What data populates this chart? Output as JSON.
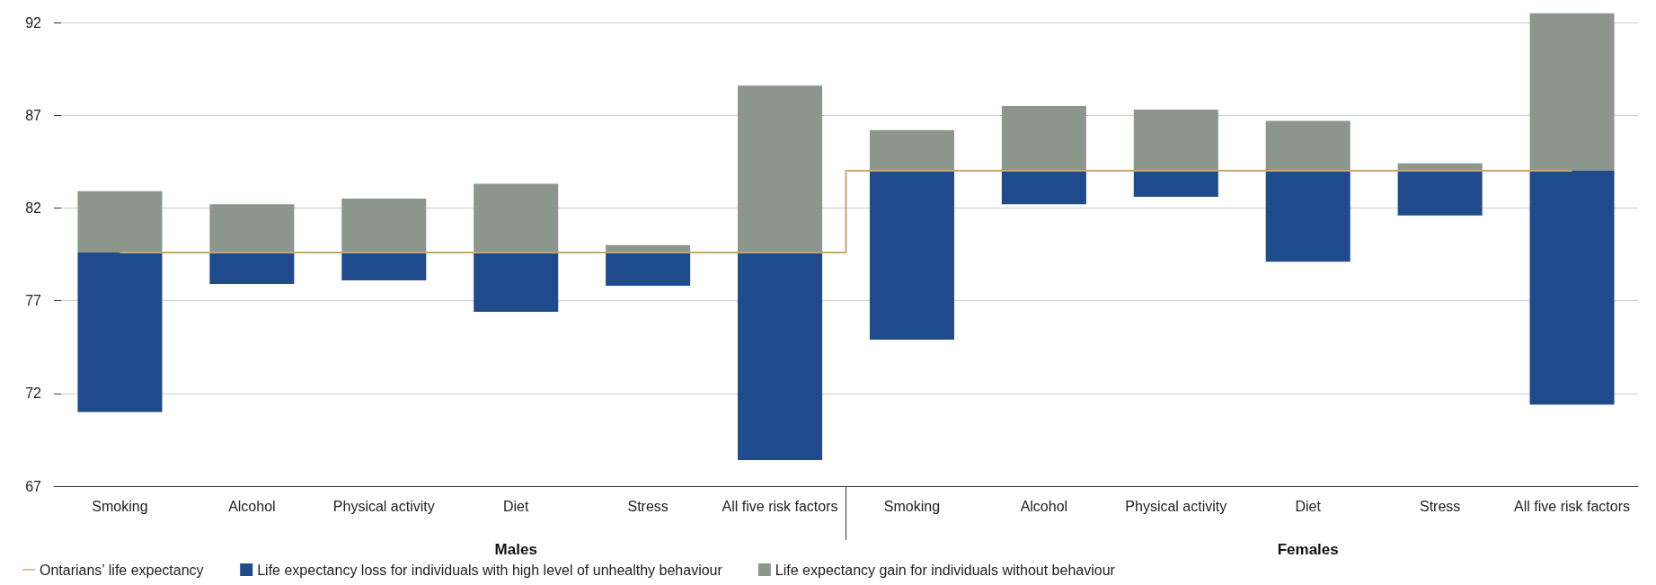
{
  "chart_data": {
    "type": "bar",
    "categories": [
      "Smoking",
      "Alcohol",
      "Physical activity",
      "Diet",
      "Stress",
      "All five risk factors",
      "Smoking",
      "Alcohol",
      "Physical activity",
      "Diet",
      "Stress",
      "All five risk factors"
    ],
    "series": [
      {
        "name": "Ontarians’ life expectancy",
        "type": "step",
        "color": "#c4a873",
        "values": [
          79.6,
          79.6,
          79.6,
          79.6,
          79.6,
          79.6,
          84.0,
          84.0,
          84.0,
          84.0,
          84.0,
          84.0
        ]
      },
      {
        "name": "Life expectancy loss for individuals with high level of unhealthy behaviour",
        "color": "#1f4a8c",
        "base": [
          71.0,
          77.9,
          78.1,
          76.4,
          77.8,
          68.4,
          74.9,
          82.2,
          82.6,
          79.1,
          81.6,
          71.4
        ],
        "values": [
          8.6,
          1.7,
          1.5,
          3.2,
          1.8,
          11.2,
          9.1,
          1.8,
          1.4,
          4.9,
          2.4,
          12.6
        ]
      },
      {
        "name": "Life expectancy gain for individuals without behaviour",
        "color": "#8c968c",
        "base": [
          79.6,
          79.6,
          79.6,
          79.6,
          79.6,
          79.6,
          84.0,
          84.0,
          84.0,
          84.0,
          84.0,
          84.0
        ],
        "values": [
          3.3,
          2.6,
          2.9,
          3.7,
          0.4,
          9.0,
          2.2,
          3.5,
          3.3,
          2.7,
          0.4,
          8.5
        ]
      }
    ],
    "ylim": [
      67,
      92
    ],
    "yticks": [
      67,
      72,
      77,
      82,
      87,
      92
    ],
    "grid": "y",
    "legend": "bottom left",
    "annotations": [
      "Males",
      "Females"
    ]
  }
}
